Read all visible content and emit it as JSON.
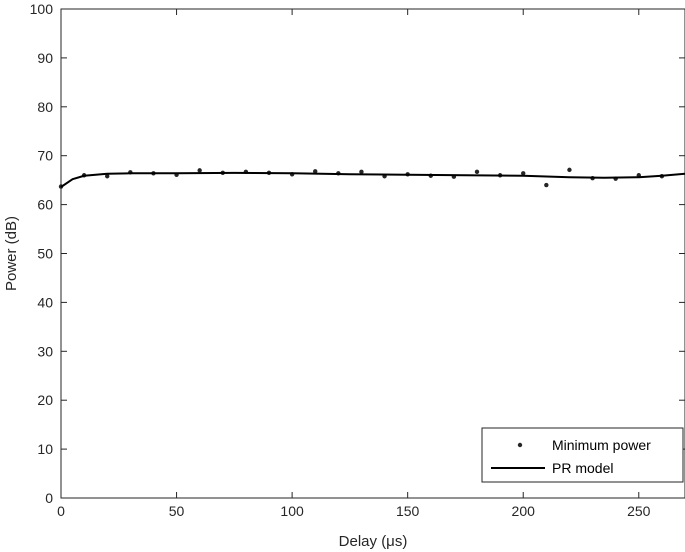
{
  "chart_data": {
    "type": "scatter",
    "xlabel": "Delay (μs)",
    "ylabel": "Power (dB)",
    "xlim": [
      0,
      270
    ],
    "ylim": [
      0,
      100
    ],
    "xticks": [
      0,
      50,
      100,
      150,
      200,
      250
    ],
    "yticks": [
      0,
      10,
      20,
      30,
      40,
      50,
      60,
      70,
      80,
      90,
      100
    ],
    "grid": false,
    "legend_position": "bottom-right",
    "series": [
      {
        "name": "Minimum power",
        "kind": "points",
        "color": "#262626",
        "x": [
          0,
          10,
          20,
          30,
          40,
          50,
          60,
          70,
          80,
          90,
          100,
          110,
          120,
          130,
          140,
          150,
          160,
          170,
          180,
          190,
          200,
          210,
          220,
          230,
          240,
          250,
          260
        ],
        "y": [
          63.7,
          66.0,
          65.8,
          66.6,
          66.4,
          66.1,
          67.0,
          66.5,
          66.7,
          66.5,
          66.2,
          66.8,
          66.4,
          66.7,
          65.8,
          66.2,
          65.9,
          65.7,
          66.7,
          66.0,
          66.4,
          64.0,
          67.1,
          65.4,
          65.3,
          66.0,
          65.8
        ]
      },
      {
        "name": "PR model",
        "kind": "line",
        "color": "#000000",
        "x": [
          0,
          5,
          10,
          20,
          30,
          50,
          75,
          100,
          125,
          150,
          175,
          200,
          220,
          235,
          250,
          260,
          270
        ],
        "y": [
          63.6,
          65.2,
          65.9,
          66.3,
          66.4,
          66.4,
          66.5,
          66.4,
          66.2,
          66.1,
          66.0,
          65.9,
          65.6,
          65.5,
          65.6,
          65.9,
          66.3
        ]
      }
    ]
  }
}
